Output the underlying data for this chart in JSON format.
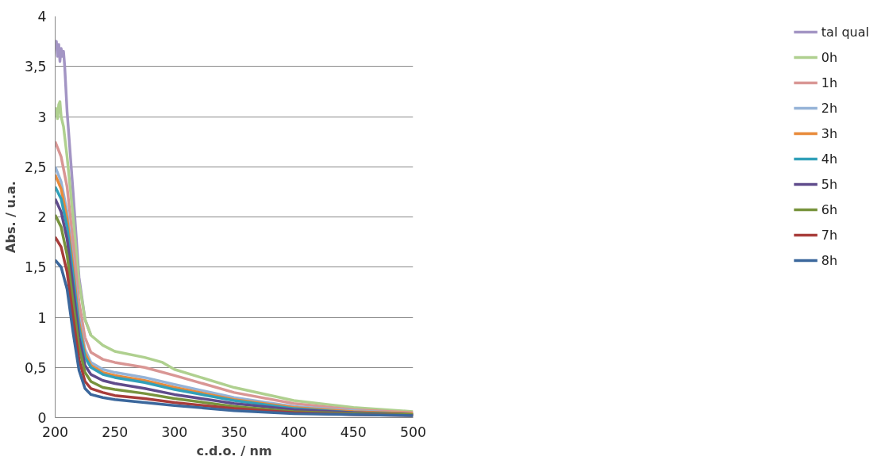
{
  "chart_data": {
    "type": "line",
    "xlabel": "c.d.o. / nm",
    "ylabel": "Abs. / u.a.",
    "x": [
      200,
      205,
      210,
      215,
      220,
      225,
      230,
      240,
      250,
      275,
      300,
      350,
      400,
      450,
      500
    ],
    "series": [
      {
        "name": "tal qual",
        "color": "#a395c4",
        "x": [
          200,
          201,
          202,
          203,
          204,
          205,
          206,
          207,
          208,
          210,
          215,
          220,
          225,
          230
        ],
        "values": [
          3.7,
          3.75,
          3.6,
          3.72,
          3.55,
          3.68,
          3.6,
          3.65,
          3.5,
          3.05,
          2.25,
          1.4,
          0.98,
          0.82
        ]
      },
      {
        "name": "0h",
        "color": "#afd08f",
        "x": [
          200,
          201,
          202,
          203,
          204,
          205,
          207,
          210,
          215,
          220,
          225,
          230,
          240,
          250,
          275,
          290,
          300,
          350,
          400,
          450,
          500
        ],
        "values": [
          3.0,
          3.08,
          2.98,
          3.12,
          3.15,
          3.0,
          2.9,
          2.6,
          2.0,
          1.35,
          0.98,
          0.82,
          0.72,
          0.66,
          0.6,
          0.55,
          0.48,
          0.3,
          0.17,
          0.1,
          0.06
        ]
      },
      {
        "name": "1h",
        "color": "#d99694",
        "values": [
          2.75,
          2.6,
          2.3,
          1.75,
          1.15,
          0.8,
          0.65,
          0.58,
          0.55,
          0.5,
          0.42,
          0.25,
          0.14,
          0.08,
          0.05
        ]
      },
      {
        "name": "2h",
        "color": "#95b3d7",
        "values": [
          2.5,
          2.35,
          2.05,
          1.55,
          1.0,
          0.68,
          0.55,
          0.48,
          0.45,
          0.4,
          0.33,
          0.2,
          0.11,
          0.07,
          0.04
        ]
      },
      {
        "name": "3h",
        "color": "#e88a3a",
        "values": [
          2.42,
          2.28,
          1.98,
          1.5,
          0.95,
          0.64,
          0.52,
          0.45,
          0.42,
          0.37,
          0.3,
          0.18,
          0.1,
          0.06,
          0.04
        ]
      },
      {
        "name": "4h",
        "color": "#31a0b9",
        "values": [
          2.3,
          2.18,
          1.9,
          1.42,
          0.9,
          0.6,
          0.5,
          0.43,
          0.4,
          0.35,
          0.28,
          0.17,
          0.09,
          0.05,
          0.03
        ]
      },
      {
        "name": "5h",
        "color": "#5f4b8b",
        "values": [
          2.18,
          2.05,
          1.78,
          1.3,
          0.8,
          0.52,
          0.43,
          0.37,
          0.34,
          0.29,
          0.23,
          0.14,
          0.08,
          0.05,
          0.03
        ]
      },
      {
        "name": "6h",
        "color": "#77933c",
        "values": [
          2.02,
          1.9,
          1.62,
          1.15,
          0.7,
          0.45,
          0.36,
          0.3,
          0.28,
          0.24,
          0.19,
          0.11,
          0.06,
          0.04,
          0.03
        ]
      },
      {
        "name": "7h",
        "color": "#a83c3a",
        "values": [
          1.8,
          1.7,
          1.45,
          1.0,
          0.58,
          0.36,
          0.29,
          0.25,
          0.22,
          0.19,
          0.15,
          0.09,
          0.05,
          0.03,
          0.02
        ]
      },
      {
        "name": "8h",
        "color": "#3b679c",
        "values": [
          1.57,
          1.5,
          1.28,
          0.85,
          0.47,
          0.29,
          0.23,
          0.2,
          0.18,
          0.15,
          0.12,
          0.07,
          0.04,
          0.03,
          0.02
        ]
      }
    ],
    "xlim": [
      200,
      500
    ],
    "xticks": [
      200,
      250,
      300,
      350,
      400,
      450,
      500
    ],
    "ylim": [
      0,
      4
    ],
    "yticks": [
      0,
      {
        "value": 0.5,
        "label": "0,5"
      },
      1,
      {
        "value": 1.5,
        "label": "1,5"
      },
      2,
      {
        "value": 2.5,
        "label": "2,5"
      },
      3,
      {
        "value": 3.5,
        "label": "3,5"
      },
      4
    ],
    "grid": "y",
    "legend": "right",
    "marker": "none",
    "line_style": "solid"
  }
}
